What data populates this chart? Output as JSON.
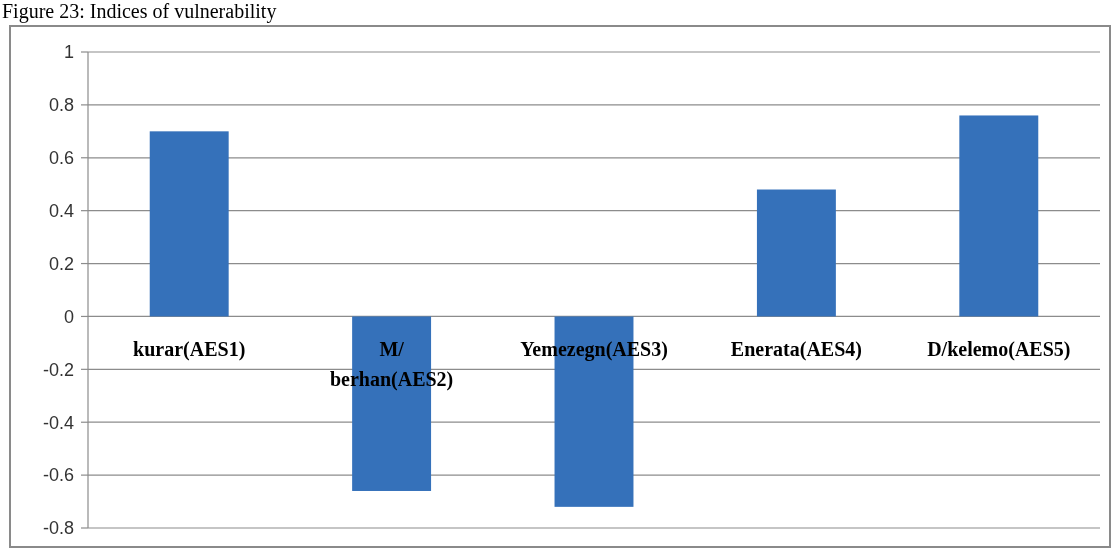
{
  "chart_data": {
    "type": "bar",
    "title": "Figure 23: Indices of vulnerability",
    "categories": [
      "kurar(AES1)",
      "M/ berhan(AES2)",
      "Yemezegn(AES3)",
      "Enerata(AES4)",
      "D/kelemo(AES5)"
    ],
    "values": [
      0.7,
      -0.66,
      -0.72,
      0.48,
      0.76
    ],
    "color": "#3571ba",
    "ylim": [
      -0.8,
      1
    ],
    "yticks": [
      -0.8,
      -0.6,
      -0.4,
      -0.2,
      0,
      0.2,
      0.4,
      0.6,
      0.8,
      1
    ],
    "grid": "y"
  }
}
